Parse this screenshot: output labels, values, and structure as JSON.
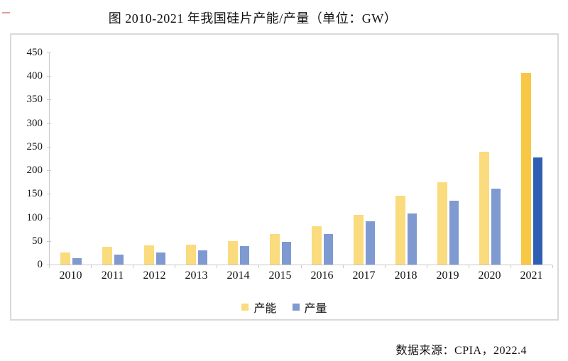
{
  "title": "图 2010-2021 年我国硅片产能/产量（单位：GW）",
  "source_note": "数据来源：CPIA，2022.4",
  "legend": {
    "capacity_label": "产能",
    "output_label": "产量"
  },
  "colors": {
    "capacity": "#fadb7d",
    "capacity_highlight": "#f8c845",
    "output": "#7f99d1",
    "output_highlight": "#2f5fb3",
    "axis": "#c9c9c9",
    "frame_border": "#d9d9d9"
  },
  "chart_data": {
    "type": "bar",
    "title": "图 2010-2021 年我国硅片产能/产量（单位：GW）",
    "categories": [
      "2010",
      "2011",
      "2012",
      "2013",
      "2014",
      "2015",
      "2016",
      "2017",
      "2018",
      "2019",
      "2020",
      "2021"
    ],
    "series": [
      {
        "name": "产能",
        "color": "#fadb7d",
        "highlight_color": "#f8c845",
        "values": [
          25,
          37,
          41,
          42,
          50,
          65,
          82,
          105,
          146,
          174,
          240,
          407
        ]
      },
      {
        "name": "产量",
        "color": "#7f99d1",
        "highlight_color": "#2f5fb3",
        "values": [
          13,
          21,
          26,
          30,
          39,
          48,
          65,
          92,
          109,
          135,
          161,
          227
        ]
      }
    ],
    "highlight_category": "2021",
    "xlabel": "",
    "ylabel": "",
    "unit": "GW",
    "ylim": [
      0,
      450
    ],
    "ytick_step": 50,
    "grid": false,
    "legend_position": "bottom"
  }
}
